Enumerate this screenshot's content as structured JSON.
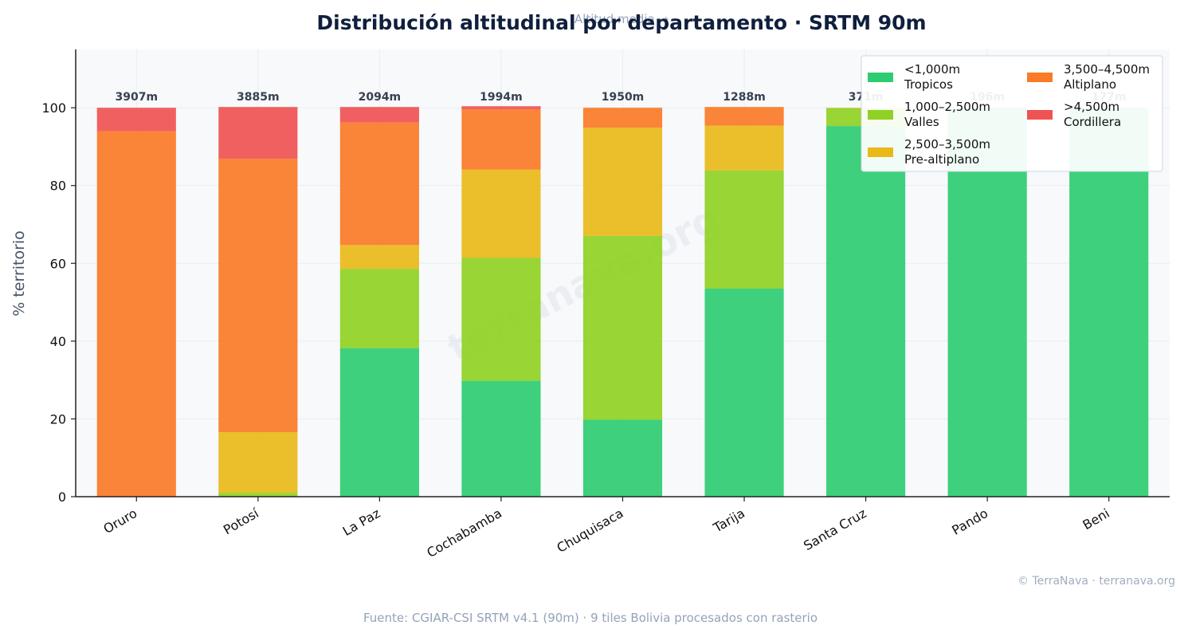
{
  "chart_data": {
    "type": "bar",
    "stacked": true,
    "title": "Distribución altitudinal por departamento · SRTM 90m",
    "subtitle": "Altitud media →",
    "ylabel": "% territorio",
    "xlabel": "",
    "ylim": [
      0,
      115
    ],
    "yticks": [
      0,
      20,
      40,
      60,
      80,
      100
    ],
    "grid": true,
    "legend_position": "top-right",
    "categories": [
      "Oruro",
      "Potosí",
      "La Paz",
      "Cochabamba",
      "Chuquisaca",
      "Tarija",
      "Santa Cruz",
      "Pando",
      "Beni"
    ],
    "mean_altitude_labels": [
      "3907m",
      "3885m",
      "2094m",
      "1994m",
      "1950m",
      "1288m",
      "371m",
      "196m",
      "177m"
    ],
    "series": [
      {
        "name": "<1,000m",
        "name_line2": "Tropicos",
        "color": "#2ecc71",
        "values": [
          0,
          0,
          38.2,
          29.8,
          19.8,
          53.5,
          95.3,
          100,
          100
        ]
      },
      {
        "name": "1,000–2,500m",
        "name_line2": "Valles",
        "color": "#8fd124",
        "values": [
          0,
          1.0,
          20.4,
          31.6,
          47.3,
          30.4,
          4.6,
          0,
          0
        ]
      },
      {
        "name": "2,500–3,500m",
        "name_line2": "Pre-altiplano",
        "color": "#e9b919",
        "values": [
          0,
          15.6,
          6.1,
          22.7,
          27.8,
          11.5,
          0.1,
          0,
          0
        ]
      },
      {
        "name": "3,500–4,500m",
        "name_line2": "Altiplano",
        "color": "#fa7a26",
        "values": [
          94.0,
          70.3,
          31.5,
          15.5,
          5.1,
          4.8,
          0,
          0,
          0
        ]
      },
      {
        "name": ">4,500m",
        "name_line2": "Cordillera",
        "color": "#f05252",
        "values": [
          6.0,
          13.3,
          4.0,
          0.8,
          0,
          0,
          0,
          0,
          0
        ]
      }
    ]
  },
  "watermark": "terranava.org",
  "credit": "© TerraNava · terranava.org",
  "source": "Fuente: CGIAR-CSI SRTM v4.1 (90m) · 9 tiles Bolivia procesados con rasterio"
}
